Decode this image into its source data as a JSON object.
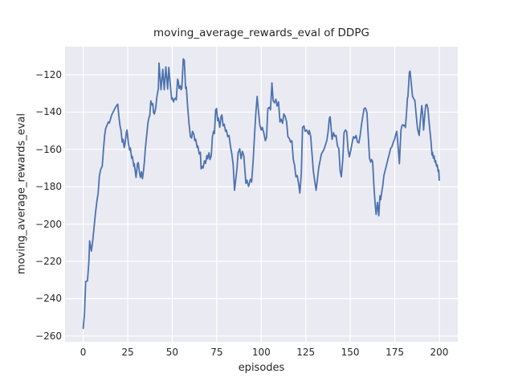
{
  "chart_data": {
    "type": "line",
    "title": "moving_average_rewards_eval of DDPG",
    "xlabel": "episodes",
    "ylabel": "moving_average_rewards_eval",
    "x_ticks": [
      0,
      25,
      50,
      75,
      100,
      125,
      150,
      175,
      200
    ],
    "y_ticks": [
      -120,
      -140,
      -160,
      -180,
      -200,
      -220,
      -240,
      -260
    ],
    "xlim": [
      -10.2,
      210.4
    ],
    "ylim": [
      -263.1,
      -104.9
    ],
    "grid": true,
    "legend": false,
    "line_color": "#4c72b0",
    "axes_background": "#eaeaf2",
    "grid_color": "#ffffff",
    "text_color": "#262626",
    "series": [
      {
        "name": "moving_average_rewards_eval",
        "points": [
          [
            0,
            -255.9
          ],
          [
            0.7,
            -248
          ],
          [
            1.4,
            -230.8
          ],
          [
            2.4,
            -230.5
          ],
          [
            3.2,
            -220
          ],
          [
            3.6,
            -209
          ],
          [
            4.6,
            -214.5
          ],
          [
            5.4,
            -208.5
          ],
          [
            6.2,
            -200.5
          ],
          [
            6.9,
            -194.1
          ],
          [
            7.7,
            -187.6
          ],
          [
            8.4,
            -183.4
          ],
          [
            9.1,
            -174
          ],
          [
            9.9,
            -170.4
          ],
          [
            10.7,
            -169
          ],
          [
            11.4,
            -159.7
          ],
          [
            12,
            -153
          ],
          [
            12.6,
            -148.9
          ],
          [
            13.2,
            -147.4
          ],
          [
            14.1,
            -145.3
          ],
          [
            14.7,
            -145.8
          ],
          [
            15.9,
            -141.7
          ],
          [
            17.4,
            -138.8
          ],
          [
            18.6,
            -136.7
          ],
          [
            19.4,
            -135.7
          ],
          [
            20.1,
            -143
          ],
          [
            20.7,
            -147.5
          ],
          [
            21.2,
            -149.6
          ],
          [
            21.9,
            -156.1
          ],
          [
            22.4,
            -154.6
          ],
          [
            23,
            -159
          ],
          [
            23.4,
            -157.5
          ],
          [
            24.2,
            -151
          ],
          [
            24.6,
            -149.6
          ],
          [
            25.4,
            -156.8
          ],
          [
            26.1,
            -160.4
          ],
          [
            26.5,
            -159.3
          ],
          [
            27.2,
            -164.7
          ],
          [
            27.6,
            -163.8
          ],
          [
            28.4,
            -169
          ],
          [
            28.7,
            -167.6
          ],
          [
            29.7,
            -175
          ],
          [
            30.5,
            -167.6
          ],
          [
            30.9,
            -167
          ],
          [
            31.6,
            -172.5
          ],
          [
            32.1,
            -175
          ],
          [
            32.7,
            -172
          ],
          [
            33.3,
            -175.7
          ],
          [
            33.9,
            -171
          ],
          [
            34.4,
            -166.1
          ],
          [
            34.8,
            -160.4
          ],
          [
            35.4,
            -154.6
          ],
          [
            35.9,
            -150.3
          ],
          [
            36.3,
            -146
          ],
          [
            36.9,
            -143.1
          ],
          [
            37.4,
            -141.7
          ],
          [
            38,
            -134
          ],
          [
            38.7,
            -136.2
          ],
          [
            39.1,
            -135.5
          ],
          [
            39.5,
            -140.3
          ],
          [
            40,
            -141
          ],
          [
            40.7,
            -138.1
          ],
          [
            41.4,
            -131.6
          ],
          [
            42.2,
            -127.3
          ],
          [
            42.6,
            -113.7
          ],
          [
            43.7,
            -128
          ],
          [
            44.7,
            -117
          ],
          [
            45.5,
            -128
          ],
          [
            46.4,
            -115.7
          ],
          [
            47.4,
            -127.6
          ],
          [
            48.1,
            -116
          ],
          [
            48.5,
            -121
          ],
          [
            48.9,
            -125.2
          ],
          [
            49.7,
            -133.1
          ],
          [
            50.1,
            -132.4
          ],
          [
            50.7,
            -134.5
          ],
          [
            51.2,
            -133.1
          ],
          [
            51.9,
            -132.4
          ],
          [
            52.3,
            -133.5
          ],
          [
            53,
            -122.3
          ],
          [
            53.4,
            -123.5
          ],
          [
            53.9,
            -127.3
          ],
          [
            54.5,
            -125.9
          ],
          [
            55,
            -128
          ],
          [
            55.4,
            -127
          ],
          [
            56.2,
            -111.5
          ],
          [
            56.8,
            -112.2
          ],
          [
            57.5,
            -127.3
          ],
          [
            57.9,
            -126.6
          ],
          [
            58.7,
            -137.4
          ],
          [
            59.4,
            -146
          ],
          [
            60.2,
            -153.2
          ],
          [
            60.9,
            -153.9
          ],
          [
            61.4,
            -150.3
          ],
          [
            62.1,
            -151.7
          ],
          [
            62.7,
            -155.3
          ],
          [
            63.2,
            -154.5
          ],
          [
            64,
            -158.9
          ],
          [
            64.4,
            -158.2
          ],
          [
            65.2,
            -162.5
          ],
          [
            65.8,
            -161.5
          ],
          [
            66.2,
            -170.4
          ],
          [
            66.9,
            -169
          ],
          [
            67.3,
            -170
          ],
          [
            68.1,
            -166.1
          ],
          [
            68.7,
            -167.5
          ],
          [
            69.5,
            -163.2
          ],
          [
            69.9,
            -165
          ],
          [
            70.7,
            -161.8
          ],
          [
            71.2,
            -165.4
          ],
          [
            71.9,
            -163.5
          ],
          [
            72.6,
            -153.2
          ],
          [
            73.2,
            -150.3
          ],
          [
            73.7,
            -151.5
          ],
          [
            74.4,
            -138.8
          ],
          [
            74.9,
            -138.1
          ],
          [
            75.5,
            -144.6
          ],
          [
            75.9,
            -143.1
          ],
          [
            76.7,
            -148.2
          ],
          [
            77.4,
            -142.4
          ],
          [
            77.9,
            -141.5
          ],
          [
            78.6,
            -147.4
          ],
          [
            79.2,
            -146.5
          ],
          [
            80,
            -150.3
          ],
          [
            80.4,
            -149.6
          ],
          [
            81.2,
            -153.2
          ],
          [
            81.9,
            -152.5
          ],
          [
            82.7,
            -158
          ],
          [
            83.4,
            -162
          ],
          [
            84.2,
            -168
          ],
          [
            85,
            -181.9
          ],
          [
            85.7,
            -176
          ],
          [
            86.4,
            -170
          ],
          [
            87,
            -161.8
          ],
          [
            87.9,
            -159.7
          ],
          [
            88.7,
            -165
          ],
          [
            89.4,
            -161
          ],
          [
            90.2,
            -163.5
          ],
          [
            91.4,
            -178.2
          ],
          [
            92,
            -176.5
          ],
          [
            92.9,
            -179.8
          ],
          [
            93.9,
            -176
          ],
          [
            94.6,
            -177.5
          ],
          [
            95.5,
            -165.4
          ],
          [
            96.2,
            -152.5
          ],
          [
            97,
            -140.3
          ],
          [
            97.7,
            -131.6
          ],
          [
            98.4,
            -138.9
          ],
          [
            99.2,
            -146.8
          ],
          [
            100,
            -149.6
          ],
          [
            100.6,
            -148.2
          ],
          [
            101.4,
            -151
          ],
          [
            102.3,
            -155.3
          ],
          [
            103,
            -153.5
          ],
          [
            103.7,
            -138.1
          ],
          [
            104.5,
            -137.4
          ],
          [
            105.2,
            -138.8
          ],
          [
            106,
            -124.4
          ],
          [
            106.7,
            -133.8
          ],
          [
            107.4,
            -135
          ],
          [
            108.2,
            -133.1
          ],
          [
            108.9,
            -136.7
          ],
          [
            109.7,
            -134.5
          ],
          [
            110.5,
            -145.3
          ],
          [
            111.2,
            -143.8
          ],
          [
            112,
            -146
          ],
          [
            112.7,
            -141
          ],
          [
            113.5,
            -142.5
          ],
          [
            114.2,
            -145
          ],
          [
            115,
            -153.2
          ],
          [
            115.7,
            -154
          ],
          [
            116.5,
            -156.1
          ],
          [
            117.2,
            -155.3
          ],
          [
            118,
            -165.4
          ],
          [
            118.7,
            -168.3
          ],
          [
            119.5,
            -174.7
          ],
          [
            120.2,
            -174
          ],
          [
            121,
            -178.3
          ],
          [
            121.7,
            -183.4
          ],
          [
            122.5,
            -172.5
          ],
          [
            123.2,
            -148.2
          ],
          [
            124,
            -147.4
          ],
          [
            124.7,
            -150.3
          ],
          [
            125.5,
            -149.6
          ],
          [
            126.6,
            -151.8
          ],
          [
            127,
            -149.8
          ],
          [
            127.8,
            -153.2
          ],
          [
            129.3,
            -171.9
          ],
          [
            130.8,
            -181.9
          ],
          [
            132.3,
            -169.7
          ],
          [
            133.8,
            -162.5
          ],
          [
            135.3,
            -159.9
          ],
          [
            136.8,
            -155.3
          ],
          [
            137.5,
            -151
          ],
          [
            138.3,
            -143.1
          ],
          [
            138.7,
            -142.5
          ],
          [
            139.8,
            -154.6
          ],
          [
            140.6,
            -151
          ],
          [
            141.3,
            -153
          ],
          [
            142,
            -152.5
          ],
          [
            142.8,
            -158.2
          ],
          [
            143.6,
            -159.7
          ],
          [
            144.3,
            -171.2
          ],
          [
            145,
            -174.7
          ],
          [
            145.8,
            -165.4
          ],
          [
            146.5,
            -151
          ],
          [
            147.3,
            -149.6
          ],
          [
            148,
            -150.5
          ],
          [
            148.8,
            -160.4
          ],
          [
            149.5,
            -164
          ],
          [
            150.3,
            -160.4
          ],
          [
            151,
            -156.8
          ],
          [
            151.8,
            -153.2
          ],
          [
            152.5,
            -154
          ],
          [
            153.3,
            -152.5
          ],
          [
            154,
            -156
          ],
          [
            154.8,
            -156.5
          ],
          [
            155.5,
            -153
          ],
          [
            156.3,
            -146.8
          ],
          [
            157,
            -142.5
          ],
          [
            157.8,
            -138.1
          ],
          [
            158.5,
            -137.8
          ],
          [
            159.4,
            -140.3
          ],
          [
            160,
            -151
          ],
          [
            160.8,
            -164.7
          ],
          [
            161.5,
            -166.8
          ],
          [
            162,
            -165.4
          ],
          [
            162.6,
            -166.5
          ],
          [
            163.3,
            -179.8
          ],
          [
            164,
            -189.1
          ],
          [
            164.5,
            -194.8
          ],
          [
            165.3,
            -188.4
          ],
          [
            166,
            -195.6
          ],
          [
            166.7,
            -184.8
          ],
          [
            167.1,
            -186.9
          ],
          [
            167.8,
            -182
          ],
          [
            168.2,
            -179.8
          ],
          [
            168.9,
            -174
          ],
          [
            169.6,
            -171.2
          ],
          [
            170.4,
            -168.3
          ],
          [
            171.1,
            -165.4
          ],
          [
            171.9,
            -162.5
          ],
          [
            172.6,
            -159.7
          ],
          [
            173.4,
            -158.5
          ],
          [
            174.2,
            -156
          ],
          [
            174.9,
            -154.6
          ],
          [
            175.6,
            -151.8
          ],
          [
            176.1,
            -150.3
          ],
          [
            176.6,
            -155.3
          ],
          [
            177.2,
            -162.5
          ],
          [
            177.6,
            -167.6
          ],
          [
            178.1,
            -157.5
          ],
          [
            178.5,
            -149.6
          ],
          [
            179,
            -147.4
          ],
          [
            179.5,
            -146.7
          ],
          [
            180.1,
            -147.4
          ],
          [
            180.6,
            -147
          ],
          [
            181,
            -148.3
          ],
          [
            181.4,
            -143.3
          ],
          [
            181.7,
            -138.8
          ],
          [
            182.1,
            -132.5
          ],
          [
            182.4,
            -131.8
          ],
          [
            183.2,
            -118.7
          ],
          [
            183.6,
            -118
          ],
          [
            184.4,
            -126
          ],
          [
            185,
            -131.6
          ],
          [
            185.7,
            -132.8
          ],
          [
            186.3,
            -133.9
          ],
          [
            187,
            -141
          ],
          [
            187.8,
            -148.9
          ],
          [
            188.7,
            -152.5
          ],
          [
            189.5,
            -143
          ],
          [
            190.2,
            -136.5
          ],
          [
            190.7,
            -141
          ],
          [
            191.2,
            -149.6
          ],
          [
            192,
            -140
          ],
          [
            192.4,
            -136.3
          ],
          [
            193,
            -135.8
          ],
          [
            193.6,
            -138
          ],
          [
            194.2,
            -144.6
          ],
          [
            194.8,
            -150.3
          ],
          [
            195.4,
            -156
          ],
          [
            195.9,
            -163
          ],
          [
            196.2,
            -161.5
          ],
          [
            196.7,
            -164.7
          ],
          [
            197.1,
            -163.5
          ],
          [
            197.6,
            -166.8
          ],
          [
            197.9,
            -166
          ],
          [
            198.5,
            -169
          ],
          [
            198.9,
            -168.3
          ],
          [
            199.4,
            -171.9
          ],
          [
            199.7,
            -171
          ],
          [
            200,
            -176.5
          ]
        ]
      }
    ]
  }
}
